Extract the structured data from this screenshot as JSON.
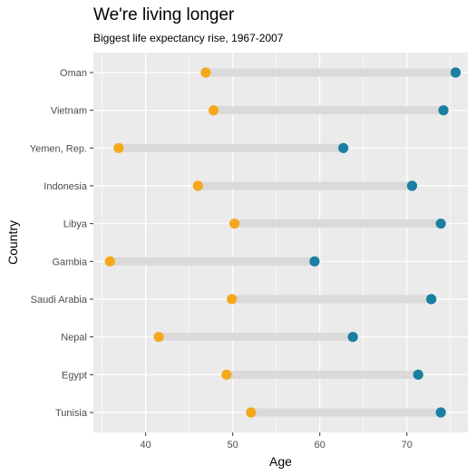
{
  "chart_data": {
    "type": "dumbbell",
    "title": "We're living longer",
    "subtitle": "Biggest life expectancy rise, 1967-2007",
    "xlabel": "Age",
    "ylabel": "Country",
    "xlim": [
      34,
      77
    ],
    "xticks": [
      40,
      50,
      60,
      70
    ],
    "grid": true,
    "colors": {
      "panel": "#ebebeb",
      "grid": "#ffffff",
      "segment": "#dadada",
      "start_point": "#f5a81c",
      "end_point": "#1a7fa1",
      "axis_text": "#4d4d4d"
    },
    "categories": [
      "Oman",
      "Vietnam",
      "Yemen, Rep.",
      "Indonesia",
      "Libya",
      "Gambia",
      "Saudi Arabia",
      "Nepal",
      "Egypt",
      "Tunisia"
    ],
    "series": [
      {
        "values": [
          46.9,
          47.8,
          36.9,
          46.0,
          50.2,
          35.9,
          49.9,
          41.5,
          49.3,
          52.1
        ]
      },
      {
        "values": [
          75.6,
          74.2,
          62.7,
          70.6,
          73.9,
          59.4,
          72.8,
          63.8,
          71.3,
          73.9
        ]
      }
    ]
  }
}
